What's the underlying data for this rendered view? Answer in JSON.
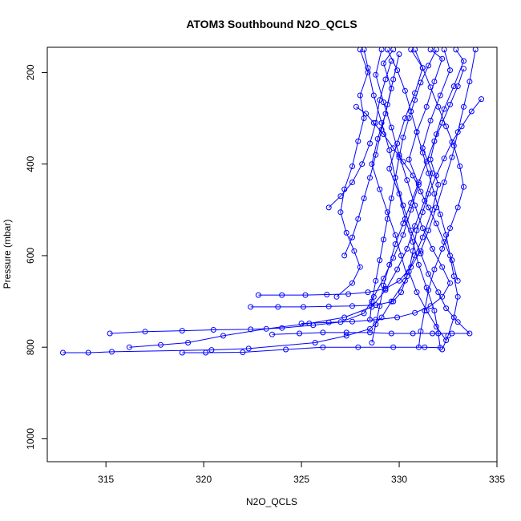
{
  "chart_data": {
    "type": "line",
    "title": "ATOM3 Southbound N2O_QCLS",
    "xlabel": "N2O_QCLS",
    "ylabel": "Pressure (mbar)",
    "xlim": [
      312,
      335
    ],
    "ylim": [
      1050,
      145
    ],
    "y_reversed": true,
    "x_ticks": [
      315,
      320,
      325,
      330,
      335
    ],
    "y_ticks": [
      200,
      400,
      600,
      800,
      1000
    ],
    "marker": "open-circle",
    "color": "#0000ff",
    "series": [
      {
        "values": [
          [
            312.8,
            812
          ],
          [
            314.1,
            812
          ],
          [
            315.3,
            810
          ],
          [
            320.4,
            806
          ],
          [
            322.3,
            803
          ],
          [
            325.7,
            790
          ],
          [
            327.3,
            775
          ],
          [
            328.5,
            760
          ],
          [
            329.1,
            735
          ],
          [
            329.6,
            700
          ],
          [
            330.3,
            655
          ],
          [
            330.8,
            600
          ],
          [
            331.2,
            560
          ],
          [
            331.7,
            500
          ],
          [
            332.0,
            445
          ],
          [
            331.6,
            390
          ],
          [
            331.9,
            335
          ],
          [
            332.3,
            280
          ],
          [
            332.8,
            230
          ],
          [
            333.3,
            175
          ],
          [
            332.9,
            150
          ]
        ]
      },
      {
        "values": [
          [
            315.2,
            770
          ],
          [
            317.0,
            766
          ],
          [
            318.9,
            764
          ],
          [
            320.5,
            762
          ],
          [
            322.4,
            761
          ],
          [
            324.0,
            758
          ],
          [
            325.6,
            752
          ],
          [
            327.0,
            745
          ],
          [
            328.2,
            726
          ],
          [
            328.7,
            690
          ],
          [
            329.2,
            650
          ],
          [
            329.7,
            605
          ],
          [
            330.2,
            555
          ],
          [
            330.6,
            500
          ],
          [
            331.0,
            445
          ],
          [
            330.5,
            390
          ],
          [
            330.9,
            330
          ],
          [
            331.4,
            275
          ],
          [
            331.8,
            220
          ],
          [
            332.2,
            170
          ],
          [
            331.6,
            150
          ]
        ]
      },
      {
        "values": [
          [
            316.2,
            800
          ],
          [
            317.8,
            795
          ],
          [
            319.2,
            790
          ],
          [
            321.0,
            775
          ],
          [
            323.2,
            760
          ],
          [
            325.4,
            748
          ],
          [
            327.2,
            735
          ],
          [
            328.6,
            712
          ],
          [
            329.3,
            675
          ],
          [
            329.9,
            630
          ],
          [
            330.4,
            585
          ],
          [
            330.8,
            535
          ],
          [
            331.3,
            480
          ],
          [
            331.7,
            420
          ],
          [
            331.2,
            365
          ],
          [
            331.6,
            305
          ],
          [
            332.1,
            250
          ],
          [
            332.6,
            195
          ],
          [
            332.3,
            150
          ]
        ]
      },
      {
        "values": [
          [
            318.9,
            812
          ],
          [
            320.1,
            812
          ],
          [
            322.0,
            811
          ],
          [
            324.2,
            805
          ],
          [
            326.1,
            800
          ],
          [
            327.9,
            800
          ],
          [
            329.7,
            800
          ],
          [
            331.3,
            800
          ],
          [
            332.1,
            801
          ],
          [
            332.0,
            770
          ],
          [
            331.8,
            720
          ],
          [
            331.4,
            670
          ],
          [
            331.0,
            620
          ],
          [
            330.7,
            570
          ],
          [
            330.3,
            520
          ],
          [
            330.0,
            465
          ],
          [
            329.5,
            410
          ],
          [
            329.9,
            355
          ],
          [
            330.3,
            300
          ],
          [
            330.8,
            245
          ],
          [
            331.2,
            190
          ],
          [
            330.6,
            150
          ]
        ]
      },
      {
        "values": [
          [
            322.4,
            712
          ],
          [
            323.8,
            712
          ],
          [
            325.1,
            712
          ],
          [
            326.4,
            711
          ],
          [
            327.6,
            710
          ],
          [
            328.8,
            708
          ],
          [
            329.7,
            700
          ],
          [
            330.1,
            680
          ],
          [
            330.4,
            645
          ],
          [
            330.1,
            600
          ],
          [
            329.8,
            555
          ],
          [
            329.4,
            505
          ],
          [
            329.0,
            455
          ],
          [
            328.6,
            400
          ],
          [
            328.9,
            345
          ],
          [
            329.3,
            290
          ],
          [
            329.6,
            235
          ],
          [
            329.2,
            180
          ],
          [
            329.7,
            150
          ]
        ]
      },
      {
        "values": [
          [
            322.8,
            686
          ],
          [
            324.0,
            686
          ],
          [
            325.2,
            686
          ],
          [
            326.3,
            685
          ],
          [
            327.4,
            684
          ],
          [
            328.4,
            680
          ],
          [
            329.3,
            672
          ],
          [
            330.0,
            655
          ],
          [
            330.6,
            625
          ],
          [
            331.1,
            590
          ],
          [
            331.5,
            545
          ],
          [
            331.9,
            495
          ],
          [
            332.3,
            440
          ],
          [
            332.7,
            385
          ],
          [
            333.0,
            330
          ],
          [
            333.3,
            275
          ],
          [
            333.6,
            220
          ],
          [
            333.9,
            150
          ]
        ]
      },
      {
        "values": [
          [
            323.5,
            772
          ],
          [
            324.9,
            770
          ],
          [
            326.1,
            768
          ],
          [
            327.3,
            768
          ],
          [
            328.5,
            768
          ],
          [
            329.6,
            770
          ],
          [
            330.7,
            770
          ],
          [
            331.7,
            770
          ],
          [
            332.7,
            770
          ],
          [
            333.6,
            770
          ],
          [
            333.0,
            745
          ],
          [
            332.4,
            715
          ],
          [
            332.0,
            680
          ],
          [
            331.5,
            640
          ],
          [
            331.1,
            595
          ],
          [
            330.6,
            545
          ],
          [
            330.2,
            490
          ],
          [
            329.8,
            430
          ],
          [
            329.5,
            370
          ],
          [
            329.1,
            310
          ],
          [
            328.7,
            250
          ],
          [
            328.4,
            190
          ],
          [
            328.2,
            150
          ]
        ]
      },
      {
        "values": [
          [
            325.0,
            748
          ],
          [
            326.4,
            746
          ],
          [
            327.6,
            744
          ],
          [
            328.8,
            740
          ],
          [
            329.9,
            735
          ],
          [
            330.8,
            725
          ],
          [
            331.6,
            710
          ],
          [
            332.2,
            690
          ],
          [
            332.6,
            660
          ],
          [
            332.2,
            625
          ],
          [
            331.7,
            585
          ],
          [
            331.2,
            540
          ],
          [
            330.8,
            490
          ],
          [
            330.4,
            435
          ],
          [
            330.0,
            380
          ],
          [
            329.6,
            320
          ],
          [
            329.2,
            265
          ],
          [
            328.8,
            205
          ],
          [
            329.1,
            150
          ]
        ]
      },
      {
        "values": [
          [
            326.8,
            690
          ],
          [
            327.6,
            660
          ],
          [
            328.0,
            625
          ],
          [
            327.7,
            590
          ],
          [
            327.3,
            550
          ],
          [
            327.0,
            505
          ],
          [
            327.2,
            455
          ],
          [
            327.6,
            405
          ],
          [
            327.9,
            350
          ],
          [
            328.2,
            300
          ],
          [
            328.0,
            250
          ],
          [
            328.4,
            200
          ],
          [
            328.0,
            150
          ]
        ]
      },
      {
        "values": [
          [
            327.2,
            600
          ],
          [
            327.6,
            560
          ],
          [
            327.9,
            520
          ],
          [
            328.2,
            475
          ],
          [
            328.5,
            430
          ],
          [
            328.8,
            380
          ],
          [
            329.1,
            325
          ],
          [
            329.4,
            270
          ],
          [
            329.7,
            215
          ],
          [
            330.0,
            160
          ]
        ]
      },
      {
        "values": [
          [
            326.4,
            495
          ],
          [
            327.0,
            470
          ],
          [
            327.6,
            440
          ],
          [
            328.1,
            400
          ],
          [
            328.5,
            355
          ],
          [
            328.8,
            310
          ],
          [
            329.0,
            260
          ],
          [
            329.3,
            215
          ],
          [
            329.6,
            175
          ]
        ]
      },
      {
        "values": [
          [
            327.8,
            275
          ],
          [
            328.3,
            290
          ],
          [
            328.7,
            310
          ],
          [
            329.2,
            335
          ],
          [
            329.7,
            365
          ],
          [
            330.2,
            395
          ],
          [
            330.7,
            425
          ],
          [
            331.1,
            460
          ],
          [
            331.5,
            495
          ],
          [
            331.9,
            530
          ],
          [
            332.3,
            570
          ],
          [
            332.7,
            610
          ],
          [
            333.0,
            655
          ]
        ]
      },
      {
        "values": [
          [
            334.2,
            258
          ],
          [
            333.7,
            285
          ],
          [
            333.2,
            318
          ],
          [
            332.7,
            352
          ],
          [
            332.3,
            388
          ],
          [
            331.9,
            425
          ],
          [
            331.5,
            465
          ],
          [
            331.2,
            505
          ],
          [
            330.9,
            545
          ],
          [
            330.7,
            590
          ],
          [
            330.5,
            635
          ],
          [
            330.9,
            680
          ],
          [
            331.4,
            720
          ],
          [
            331.9,
            755
          ],
          [
            332.4,
            785
          ]
        ]
      },
      {
        "values": [
          [
            333.3,
            192
          ],
          [
            333.0,
            230
          ],
          [
            332.6,
            270
          ],
          [
            332.2,
            310
          ],
          [
            331.8,
            350
          ],
          [
            331.4,
            395
          ],
          [
            331.0,
            440
          ],
          [
            330.6,
            485
          ],
          [
            330.2,
            530
          ],
          [
            329.8,
            575
          ],
          [
            329.5,
            620
          ],
          [
            329.2,
            665
          ],
          [
            329.0,
            710
          ],
          [
            328.8,
            750
          ],
          [
            328.6,
            790
          ]
        ]
      },
      {
        "values": [
          [
            331.9,
            150
          ],
          [
            331.5,
            185
          ],
          [
            331.1,
            222
          ],
          [
            330.8,
            260
          ],
          [
            330.5,
            300
          ],
          [
            330.2,
            342
          ],
          [
            330.0,
            385
          ],
          [
            329.8,
            430
          ],
          [
            329.6,
            475
          ],
          [
            329.4,
            520
          ],
          [
            329.2,
            565
          ],
          [
            329.0,
            610
          ],
          [
            328.8,
            655
          ],
          [
            328.6,
            700
          ],
          [
            328.5,
            740
          ]
        ]
      },
      {
        "values": [
          [
            330.8,
            150
          ],
          [
            331.2,
            190
          ],
          [
            331.6,
            232
          ],
          [
            332.0,
            275
          ],
          [
            332.4,
            318
          ],
          [
            332.8,
            360
          ],
          [
            333.1,
            405
          ],
          [
            333.3,
            450
          ],
          [
            333.0,
            495
          ],
          [
            332.6,
            540
          ],
          [
            332.2,
            585
          ],
          [
            331.8,
            630
          ],
          [
            331.5,
            675
          ],
          [
            331.3,
            720
          ],
          [
            331.1,
            765
          ],
          [
            331.0,
            800
          ]
        ]
      },
      {
        "values": [
          [
            329.4,
            150
          ],
          [
            329.9,
            195
          ],
          [
            330.3,
            240
          ],
          [
            330.6,
            285
          ],
          [
            330.9,
            330
          ],
          [
            331.2,
            375
          ],
          [
            331.5,
            420
          ],
          [
            331.8,
            465
          ],
          [
            332.1,
            510
          ],
          [
            332.4,
            555
          ],
          [
            332.6,
            600
          ],
          [
            332.8,
            645
          ],
          [
            333.0,
            690
          ],
          [
            332.8,
            735
          ],
          [
            332.5,
            775
          ],
          [
            332.2,
            805
          ]
        ]
      }
    ]
  }
}
